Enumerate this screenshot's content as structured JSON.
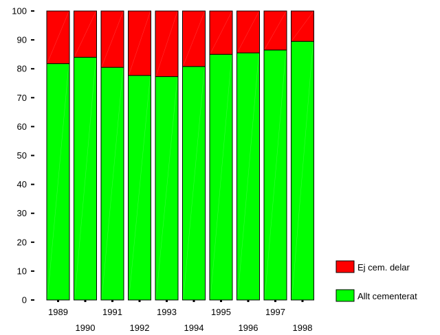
{
  "chart_data": {
    "type": "bar",
    "stacked": true,
    "categories": [
      "1989",
      "1990",
      "1991",
      "1992",
      "1993",
      "1994",
      "1995",
      "1996",
      "1997",
      "1998"
    ],
    "series": [
      {
        "name": "Allt cementerat",
        "color": "#00ff00",
        "values": [
          81.8,
          84.0,
          80.5,
          77.7,
          77.3,
          80.8,
          85.0,
          85.5,
          86.5,
          89.5
        ]
      },
      {
        "name": "Ej cem. delar",
        "color": "#ff0000",
        "values": [
          18.2,
          16.0,
          19.5,
          22.3,
          22.7,
          19.2,
          15.0,
          14.5,
          13.5,
          10.5
        ]
      }
    ],
    "ylim": [
      0,
      100
    ],
    "yticks": [
      0,
      10,
      20,
      30,
      40,
      50,
      60,
      70,
      80,
      90,
      100
    ],
    "grid": false,
    "legend_position": "bottom-right",
    "legend_order": [
      "Ej cem. delar",
      "Allt cementerat"
    ]
  }
}
